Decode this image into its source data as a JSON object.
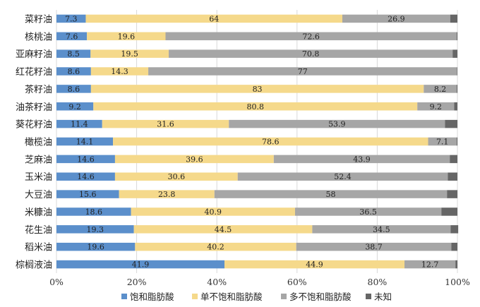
{
  "chart_data": {
    "type": "bar",
    "orientation": "horizontal",
    "stacked": true,
    "percent": true,
    "categories": [
      "菜籽油",
      "核桃油",
      "亚麻籽油",
      "红花籽油",
      "茶籽油",
      "油茶籽油",
      "葵花籽油",
      "橄榄油",
      "芝麻油",
      "玉米油",
      "大豆油",
      "米糠油",
      "花生油",
      "稻米油",
      "棕榈液油"
    ],
    "series": [
      {
        "name": "饱和脂肪酸",
        "color": "#5b8fcb",
        "values": [
          7.3,
          7.6,
          8.5,
          8.6,
          8.6,
          9.2,
          11.4,
          14.1,
          14.6,
          14.6,
          15.6,
          18.6,
          19.3,
          19.6,
          41.9
        ],
        "labels": [
          "7.3",
          "7.6",
          "8.5",
          "8.6",
          "8.6",
          "9.2",
          "11.4",
          "14.1",
          "14.6",
          "14.6",
          "15.6",
          "18.6",
          "19.3",
          "19.6",
          "41.9"
        ]
      },
      {
        "name": "单不饱和脂肪酸",
        "color": "#f5d98b",
        "values": [
          64,
          19.6,
          19.5,
          14.3,
          83,
          80.8,
          31.6,
          78.6,
          39.6,
          30.6,
          23.8,
          40.9,
          44.5,
          40.2,
          44.9
        ],
        "labels": [
          "64",
          "19.6",
          "19.5",
          "14.3",
          "83",
          "80.8",
          "31.6",
          "78.6",
          "39.6",
          "30.6",
          "23.8",
          "40.9",
          "44.5",
          "40.2",
          "44.9"
        ]
      },
      {
        "name": "多不饱和脂肪酸",
        "color": "#a6a6a6",
        "values": [
          26.9,
          72.6,
          70.8,
          77,
          8.2,
          9.2,
          53.9,
          7.1,
          43.9,
          52.4,
          58,
          36.5,
          34.5,
          38.7,
          12.7
        ],
        "labels": [
          "26.9",
          "72.6",
          "70.8",
          "77",
          "8.2",
          "9.2",
          "53.9",
          "7.1",
          "43.9",
          "52.4",
          "58",
          "36.5",
          "34.5",
          "38.7",
          "12.7"
        ]
      },
      {
        "name": "未知",
        "color": "#666666",
        "values": [
          1.8,
          0.2,
          1.2,
          0.1,
          0.2,
          0.8,
          3.1,
          0.2,
          1.9,
          2.4,
          2.6,
          4.0,
          1.9,
          1.5,
          0.5
        ],
        "labels": [
          "",
          "",
          "",
          "",
          "",
          "",
          "",
          "",
          "",
          "",
          "",
          "",
          "",
          "",
          ""
        ]
      }
    ],
    "x_ticks": [
      "0%",
      "20%",
      "40%",
      "60%",
      "80%",
      "100%"
    ],
    "xlim": [
      0,
      100
    ],
    "grid": "vertical",
    "legend_position": "bottom",
    "title": "",
    "xlabel": "",
    "ylabel": ""
  }
}
